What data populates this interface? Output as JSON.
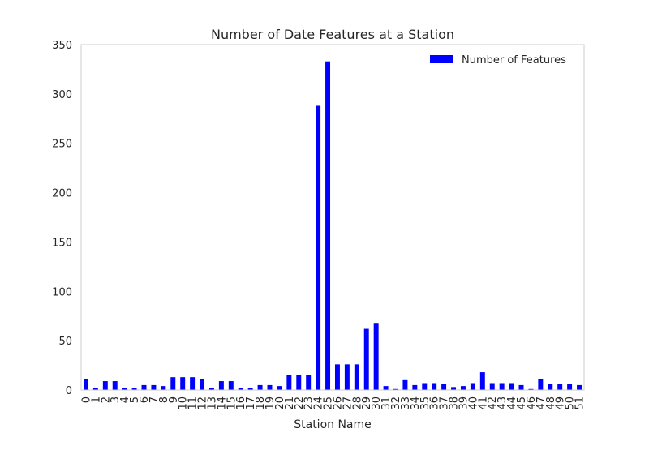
{
  "colors": {
    "bar": "#0000ff",
    "frame": "#cccccc",
    "text": "#262626",
    "background": "#ffffff"
  },
  "chart_data": {
    "type": "bar",
    "title": "Number of Date Features at a Station",
    "xlabel": "Station Name",
    "ylabel": "",
    "ylim": [
      0,
      350
    ],
    "yticks": [
      0,
      50,
      100,
      150,
      200,
      250,
      300,
      350
    ],
    "grid": false,
    "legend_position": "top-right",
    "categories": [
      "0",
      "1",
      "2",
      "3",
      "4",
      "5",
      "6",
      "7",
      "8",
      "9",
      "10",
      "11",
      "12",
      "13",
      "14",
      "15",
      "16",
      "17",
      "18",
      "19",
      "20",
      "21",
      "22",
      "23",
      "24",
      "25",
      "26",
      "27",
      "28",
      "29",
      "30",
      "31",
      "32",
      "33",
      "34",
      "35",
      "36",
      "37",
      "38",
      "39",
      "40",
      "41",
      "42",
      "43",
      "44",
      "45",
      "46",
      "47",
      "48",
      "49",
      "50",
      "51"
    ],
    "series": [
      {
        "name": "Number of Features",
        "values": [
          11,
          2,
          9,
          9,
          2,
          2,
          5,
          5,
          4,
          13,
          13,
          13,
          11,
          2,
          9,
          9,
          2,
          2,
          5,
          5,
          4,
          15,
          15,
          15,
          288,
          333,
          26,
          26,
          26,
          62,
          68,
          4,
          1,
          10,
          5,
          7,
          7,
          6,
          3,
          4,
          7,
          18,
          7,
          7,
          7,
          5,
          1,
          11,
          6,
          6,
          6,
          5
        ]
      }
    ]
  }
}
